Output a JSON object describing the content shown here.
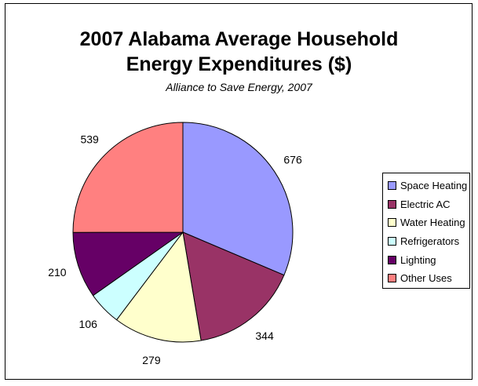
{
  "chart_data": {
    "type": "pie",
    "title_lines": [
      "2007 Alabama Average Household",
      "Energy Expenditures ($)"
    ],
    "subtitle": "Alliance to Save Energy, 2007",
    "categories": [
      "Space Heating",
      "Electric AC",
      "Water Heating",
      "Refrigerators",
      "Lighting",
      "Other Uses"
    ],
    "values": [
      676,
      344,
      279,
      106,
      210,
      539
    ],
    "colors": [
      "#9999ff",
      "#993366",
      "#ffffcc",
      "#ccffff",
      "#660066",
      "#ff8080"
    ],
    "start_angle_deg": 0,
    "direction": "clockwise",
    "legend_position": "right"
  }
}
